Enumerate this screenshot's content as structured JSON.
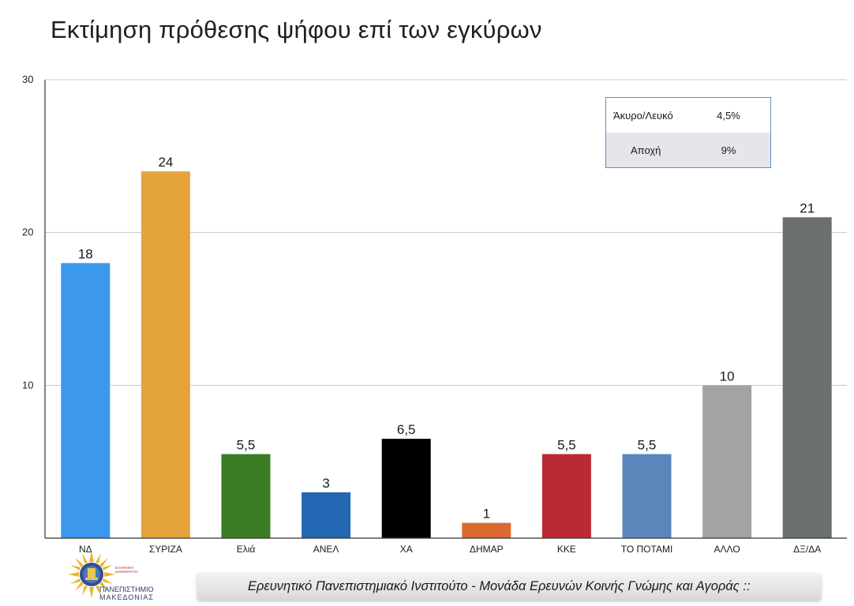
{
  "title": "Εκτίμηση πρόθεσης ψήφου επί των εγκύρων",
  "chart_data": {
    "type": "bar",
    "categories": [
      "ΝΔ",
      "ΣΥΡΙΖΑ",
      "Ελιά",
      "ΑΝΕΛ",
      "ΧΑ",
      "ΔΗΜΑΡ",
      "ΚΚΕ",
      "ΤΟ ΠΟΤΑΜΙ",
      "ΑΛΛΟ",
      "ΔΞ/ΔΑ"
    ],
    "values": [
      18,
      24,
      5.5,
      3,
      6.5,
      1,
      5.5,
      5.5,
      10,
      21
    ],
    "value_labels": [
      "18",
      "24",
      "5,5",
      "3",
      "6,5",
      "1",
      "5,5",
      "5,5",
      "10",
      "21"
    ],
    "colors": [
      "#3b98ec",
      "#e5a33c",
      "#3a7d24",
      "#2366b1",
      "#000000",
      "#db6a31",
      "#bb2a32",
      "#5b86bc",
      "#a3a3a3",
      "#6c706c"
    ],
    "ylim": [
      0,
      30
    ],
    "yticks": [
      10,
      20,
      30
    ],
    "grid": true,
    "xlabel": "",
    "ylabel": ""
  },
  "legend_table": {
    "rows": [
      {
        "label": "Άκυρο/Λευκό",
        "value": "4,5%"
      },
      {
        "label": "Αποχή",
        "value": "9%"
      }
    ]
  },
  "footer": {
    "text": "Ερευνητικό Πανεπιστημιακό Ινστιτούτο - Μονάδα Ερευνών Κοινής Γνώμης και Αγοράς ::"
  },
  "logo": {
    "name_line1": "ΠΑΝΕΠΙΣΤΗΜΙΟ",
    "name_line2": "ΜΑΚΕΔΟΝΙΑΣ",
    "small_line1": "ΕΛΛΗΝΙΚΗ",
    "small_line2": "ΔΗΜΟΚΡΑΤΙΑ"
  }
}
